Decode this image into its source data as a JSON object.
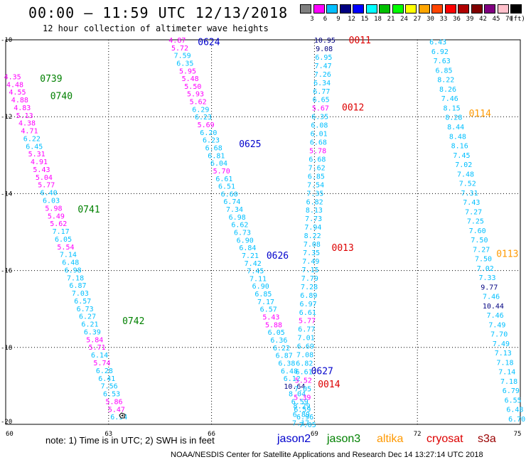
{
  "header": {
    "title": "00:00 – 11:59 UTC 12/13/2018",
    "subtitle": "12 hour collection of altimeter wave heights"
  },
  "legend": {
    "unit": "(ft)",
    "colors": [
      "#808080",
      "#ff00ff",
      "#00bfff",
      "#000080",
      "#0000ff",
      "#00ffff",
      "#00c000",
      "#00ff00",
      "#ffff00",
      "#ffa500",
      "#ff4500",
      "#ff0000",
      "#b00000",
      "#800000",
      "#800080",
      "#ffc0cb",
      "#000000"
    ],
    "labels": [
      "3",
      "6",
      "9",
      "12",
      "15",
      "18",
      "21",
      "24",
      "27",
      "30",
      "33",
      "36",
      "39",
      "42",
      "45",
      "70"
    ]
  },
  "axes": {
    "lon_labels": [
      "60",
      "63",
      "66",
      "69",
      "72",
      "75"
    ],
    "lat_labels": [
      "-10",
      "-12",
      "-14",
      "-16",
      "-18",
      "-20"
    ]
  },
  "footer": {
    "note": "note:  1) Time is in UTC;  2) SWH is in feet",
    "satellites": [
      {
        "name": "jason2",
        "color": "#0000cc"
      },
      {
        "name": "jason3",
        "color": "#008000"
      },
      {
        "name": "altika",
        "color": "#ff9900"
      },
      {
        "name": "cryosat",
        "color": "#dd0000"
      },
      {
        "name": "s3a",
        "color": "#990000"
      }
    ],
    "credit": "NOAA/NESDIS Center for Satellite Applications and Research    Dec 14 13:27:14 UTC 2018"
  },
  "tracks": [
    {
      "name": "jason3-pass-0739-0742",
      "satellite": "jason3",
      "start": [
        60.2,
        -10.95
      ],
      "end": [
        63.3,
        -19.8
      ],
      "values": [
        "4.35",
        "4.48",
        "4.55",
        "4.88",
        "4.83",
        "5.13",
        "4.38",
        "4.71",
        "6.22",
        "6.45",
        "5.31",
        "4.91",
        "5.43",
        "5.04",
        "5.77",
        "6.40",
        "6.03",
        "5.98",
        "5.49",
        "5.62",
        "7.17",
        "6.05",
        "5.54",
        "7.14",
        "6.48",
        "6.98",
        "7.18",
        "6.87",
        "7.03",
        "6.57",
        "6.73",
        "6.27",
        "6.21",
        "6.39",
        "5.84",
        "5.71",
        "6.14",
        "5.74",
        "6.28",
        "6.41",
        "7.56",
        "6.53",
        "5.86",
        "5.47",
        "6.94"
      ],
      "times": [
        {
          "label": "0739",
          "lon": 61.0,
          "lat": -11.0
        },
        {
          "label": "0740",
          "lon": 61.3,
          "lat": -11.45
        },
        {
          "label": "0741",
          "lon": 62.1,
          "lat": -14.4
        },
        {
          "label": "0742",
          "lon": 63.4,
          "lat": -17.3
        }
      ]
    },
    {
      "name": "jason2-pass-0624-0627",
      "satellite": "jason2",
      "start": [
        65.0,
        -10.0
      ],
      "end": [
        68.8,
        -20.0
      ],
      "values": [
        "4.87",
        "5.72",
        "7.59",
        "6.35",
        "5.95",
        "5.48",
        "5.50",
        "5.93",
        "5.62",
        "6.29",
        "6.23",
        "5.69",
        "6.20",
        "6.23",
        "6.68",
        "6.81",
        "6.04",
        "5.70",
        "6.61",
        "6.51",
        "6.60",
        "6.74",
        "7.34",
        "6.98",
        "6.62",
        "6.73",
        "6.90",
        "6.84",
        "7.21",
        "7.42",
        "7.45",
        "7.11",
        "6.90",
        "6.85",
        "7.17",
        "6.57",
        "5.43",
        "5.88",
        "6.05",
        "6.36",
        "6.22",
        "6.87",
        "6.38",
        "6.48",
        "6.12",
        "10.64",
        "8.04",
        "6.59",
        "6.59",
        "6.96",
        "7.05"
      ],
      "times": [
        {
          "label": "0624",
          "lon": 65.6,
          "lat": -10.05
        },
        {
          "label": "0625",
          "lon": 66.8,
          "lat": -12.7
        },
        {
          "label": "0626",
          "lon": 67.6,
          "lat": -15.6
        },
        {
          "label": "0627",
          "lon": 68.9,
          "lat": -18.6
        }
      ]
    },
    {
      "name": "cryosat-pass-0011-0014",
      "satellite": "cryosat",
      "start": [
        69.3,
        -10.0
      ],
      "end": [
        68.6,
        -19.95
      ],
      "values": [
        "10.95",
        "9.08",
        "6.95",
        "7.47",
        "7.26",
        "6.34",
        "6.77",
        "6.65",
        "5.67",
        "6.35",
        "6.08",
        "6.01",
        "6.68",
        "5.78",
        "6.68",
        "7.62",
        "6.85",
        "7.54",
        "7.35",
        "6.82",
        "8.13",
        "7.73",
        "7.94",
        "8.22",
        "7.08",
        "7.35",
        "7.49",
        "7.15",
        "7.79",
        "7.28",
        "6.89",
        "6.97",
        "6.61",
        "5.77",
        "6.77",
        "7.01",
        "6.69",
        "7.08",
        "6.82",
        "6.61",
        "5.52",
        "7.05",
        "5.39",
        "8.29",
        "6.89",
        "7.17"
      ],
      "times": [
        {
          "label": "0011",
          "lon": 70.0,
          "lat": -10.0
        },
        {
          "label": "0012",
          "lon": 69.8,
          "lat": -11.75
        },
        {
          "label": "0013",
          "lon": 69.5,
          "lat": -15.4
        },
        {
          "label": "0014",
          "lon": 69.1,
          "lat": -18.95
        }
      ]
    },
    {
      "name": "altika-pass-0114-0113",
      "satellite": "altika",
      "start": [
        72.6,
        -10.05
      ],
      "end": [
        74.9,
        -19.85
      ],
      "values": [
        "6.43",
        "6.92",
        "7.63",
        "6.85",
        "8.22",
        "8.26",
        "7.46",
        "8.15",
        "8.28",
        "8.44",
        "8.48",
        "8.16",
        "7.45",
        "7.02",
        "7.48",
        "7.52",
        "7.31",
        "7.43",
        "7.27",
        "7.25",
        "7.60",
        "7.50",
        "7.27",
        "7.50",
        "7.02",
        "7.33",
        "9.77",
        "7.46",
        "10.44",
        "7.46",
        "7.49",
        "7.70",
        "7.49",
        "7.13",
        "7.18",
        "7.14",
        "7.18",
        "6.79",
        "6.55",
        "6.48",
        "6.70"
      ],
      "times": [
        {
          "label": "0114",
          "lon": 73.5,
          "lat": -11.9
        },
        {
          "label": "0113",
          "lon": 74.3,
          "lat": -15.55
        }
      ]
    }
  ]
}
